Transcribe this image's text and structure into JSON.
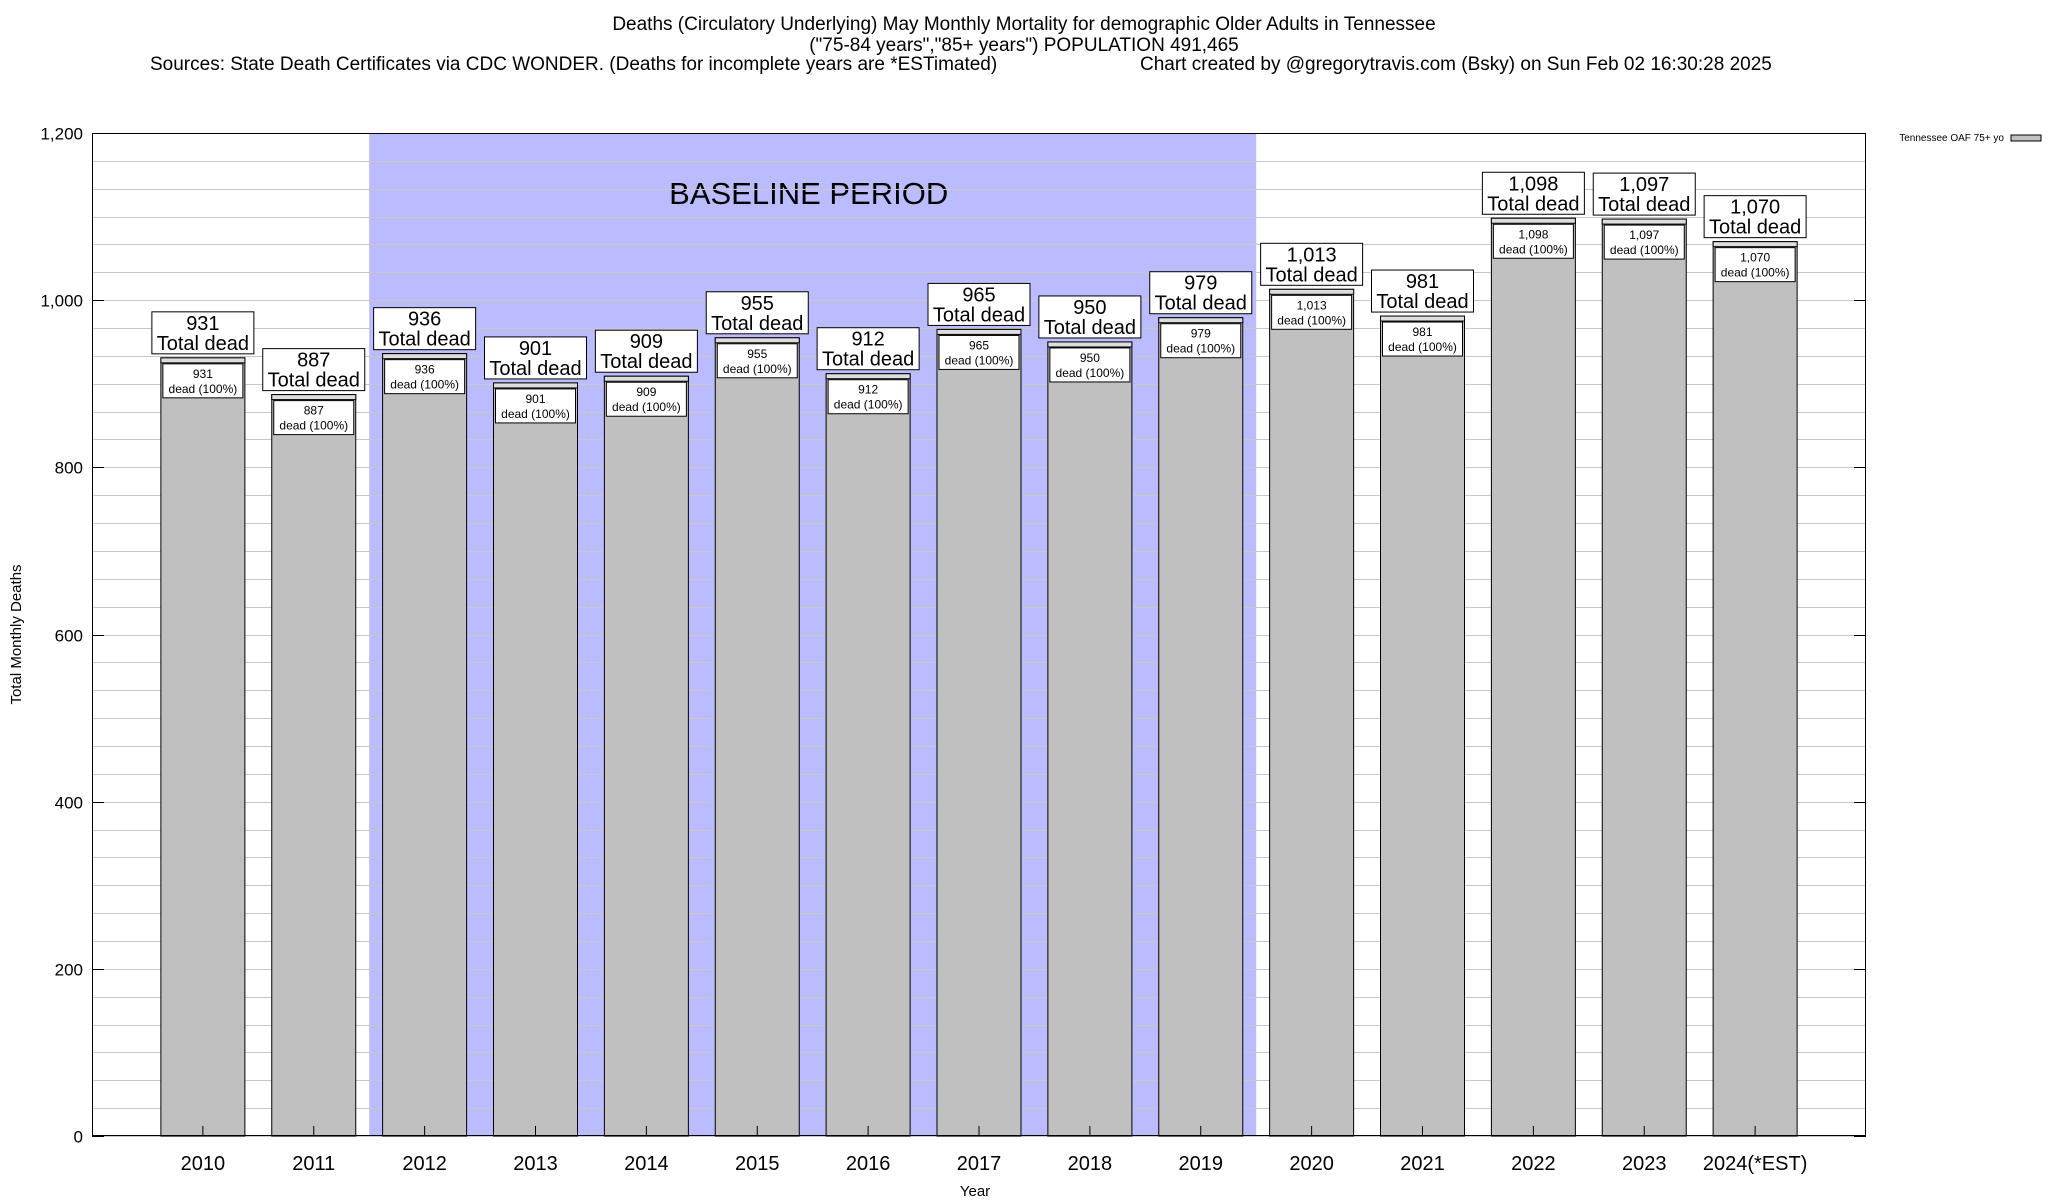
{
  "header": {
    "title_line1": "Deaths (Circulatory Underlying) May Monthly Mortality for demographic Older Adults in Tennessee",
    "title_line2": "(\"75-84 years\",\"85+ years\") POPULATION 491,465",
    "sources": "Sources: State Death Certificates via CDC WONDER. (Deaths for incomplete years are *ESTimated)",
    "credit": "Chart created by @gregorytravis.com (Bsky) on Sun Feb 02 16:30:28 2025"
  },
  "colors": {
    "bar_fill": "#c0c0c0",
    "baseline_fill": "#bbbbff",
    "grid": "#c8c8c8",
    "axis": "#000000"
  },
  "chart_data": {
    "type": "bar",
    "title": "Deaths (Circulatory Underlying) May Monthly Mortality for demographic Older Adults in Tennessee",
    "xlabel": "Year",
    "ylabel": "Total Monthly Deaths",
    "ylim": [
      0,
      1200
    ],
    "yticks": [
      0,
      200,
      400,
      600,
      800,
      1000,
      1200
    ],
    "ytick_labels": [
      "0",
      "200",
      "400",
      "600",
      "800",
      "1,000",
      "1,200"
    ],
    "grid": true,
    "legend": {
      "label": "Tennessee OAF 75+ yo",
      "position": "top-right"
    },
    "categories": [
      "2010",
      "2011",
      "2012",
      "2013",
      "2014",
      "2015",
      "2016",
      "2017",
      "2018",
      "2019",
      "2020",
      "2021",
      "2022",
      "2023",
      "2024(*EST)"
    ],
    "values": [
      931,
      887,
      936,
      901,
      909,
      955,
      912,
      965,
      950,
      979,
      1013,
      981,
      1098,
      1097,
      1070
    ],
    "value_labels": [
      "931",
      "887",
      "936",
      "901",
      "909",
      "955",
      "912",
      "965",
      "950",
      "979",
      "1,013",
      "981",
      "1,098",
      "1,097",
      "1,070"
    ],
    "total_label_suffix": "Total dead",
    "inner_label_suffix": "dead (100%)",
    "baseline": {
      "label": "BASELINE PERIOD",
      "start": "2012",
      "end": "2019"
    }
  }
}
